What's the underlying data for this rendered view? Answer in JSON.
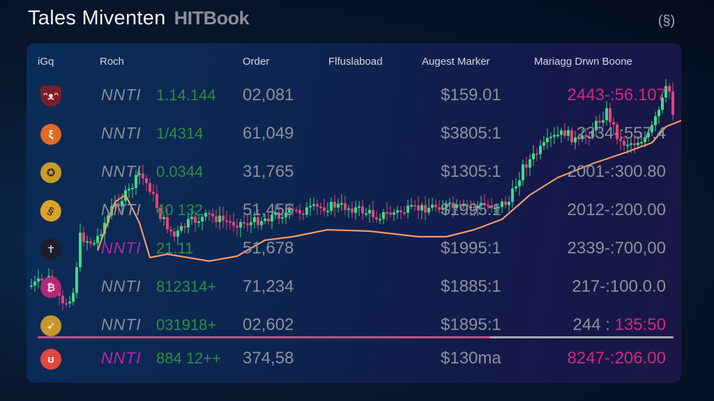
{
  "header": {
    "title": "Tales Miventen",
    "subtitle": "HITBook",
    "icon": "coin-badge-icon",
    "icon_glyph": "(§)"
  },
  "table": {
    "columns": [
      "iGq",
      "Roch",
      "Order",
      "Flfuslaboad",
      "Augest Marker",
      "Mariagg Drwn Boone"
    ],
    "rows": [
      {
        "icon": "cat-face-icon",
        "icon_color": "#7a1f2a",
        "icon_glyph": "ᵔᴥᵔ",
        "symbol": "NNTI",
        "symbol_color": "gray",
        "change": "1.14.144",
        "order": "02,081",
        "price": "$159.01",
        "range": "2443-:56.107",
        "range_color": "pink"
      },
      {
        "icon": "orange-snake-icon",
        "icon_color": "#e06b25",
        "icon_glyph": "ξ",
        "symbol": "NNTI",
        "symbol_color": "gray",
        "change": "1/4314",
        "order": "61,049",
        "price": "$3805:1",
        "range": "2334-:557.4",
        "range_color": "gray"
      },
      {
        "icon": "gold-coin-icon",
        "icon_color": "#c99a2c",
        "icon_glyph": "✪",
        "symbol": "NNTI",
        "symbol_color": "gray",
        "change": "0.0344",
        "order": "31,765",
        "price": "$1305:1",
        "range": "2001-:300.80",
        "range_color": "gray"
      },
      {
        "icon": "yellow-token-icon",
        "icon_color": "#d9a52b",
        "icon_glyph": "§",
        "symbol": "NNTI",
        "symbol_color": "gray",
        "change": "40 132",
        "order": "51,456",
        "price": "$1995:1",
        "range": "2012-:200.00",
        "range_color": "gray"
      },
      {
        "icon": "figure-icon",
        "icon_color": "#1c1f2a",
        "icon_glyph": "✝",
        "symbol": "NNTI",
        "symbol_color": "pink",
        "change": "21.11",
        "order": "51,678",
        "price": "$1995:1",
        "range": "2339-:700,00",
        "range_color": "gray"
      },
      {
        "icon": "pink-token-icon",
        "icon_color": "#b02a72",
        "icon_glyph": "₿",
        "symbol": "NNTI",
        "symbol_color": "gray",
        "change": "812314+",
        "order": "71,234",
        "price": "$1885:1",
        "range": "217-:100.0.0",
        "range_color": "gray"
      },
      {
        "icon": "gold-compass-icon",
        "icon_color": "#c8962e",
        "icon_glyph": "➶",
        "symbol": "NNTI",
        "symbol_color": "gray",
        "change": "031918+",
        "order": "02,602",
        "price": "$1895:1",
        "range_prefix": "244 :",
        "range": "135:50",
        "range_color": "pink"
      },
      {
        "icon": "red-token-icon",
        "icon_color": "#e2463f",
        "icon_glyph": "ʊ",
        "symbol": "NNTI",
        "symbol_color": "pink",
        "change": "884 12++",
        "order": "374,58",
        "price": "$130ma",
        "range": "8247-:206.00",
        "range_color": "pink"
      }
    ]
  },
  "colors": {
    "up": "#3ddc84",
    "down": "#e8437a",
    "ma_line": "#f29a6b",
    "green_text": "#2f8f45",
    "pink_text": "#d2287f",
    "divider_pink": "#c8508a",
    "divider_gray": "#a7abb9"
  }
}
